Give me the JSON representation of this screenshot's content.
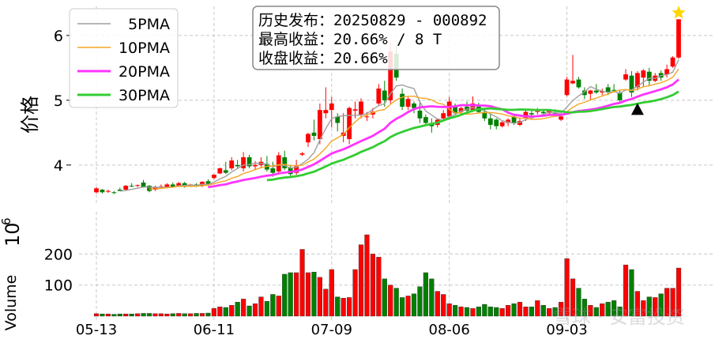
{
  "chart_data": {
    "type": "candlestick",
    "price_panel": {
      "ylabel": "价格",
      "yticks": [
        4,
        5,
        6
      ],
      "ylim": [
        3.4,
        6.45
      ],
      "grid": true,
      "candles": [
        [
          3.58,
          3.66,
          3.56,
          3.64
        ],
        [
          3.62,
          3.63,
          3.56,
          3.58
        ],
        [
          3.6,
          3.62,
          3.57,
          3.6
        ],
        [
          3.58,
          3.6,
          3.55,
          3.57
        ],
        [
          3.62,
          3.65,
          3.6,
          3.6
        ],
        [
          3.62,
          3.69,
          3.6,
          3.68
        ],
        [
          3.68,
          3.72,
          3.66,
          3.67
        ],
        [
          3.68,
          3.7,
          3.66,
          3.69
        ],
        [
          3.73,
          3.77,
          3.65,
          3.66
        ],
        [
          3.68,
          3.69,
          3.58,
          3.6
        ],
        [
          3.62,
          3.68,
          3.6,
          3.66
        ],
        [
          3.66,
          3.7,
          3.63,
          3.67
        ],
        [
          3.66,
          3.72,
          3.64,
          3.7
        ],
        [
          3.7,
          3.73,
          3.65,
          3.66
        ],
        [
          3.68,
          3.74,
          3.66,
          3.72
        ],
        [
          3.72,
          3.74,
          3.65,
          3.67
        ],
        [
          3.68,
          3.71,
          3.66,
          3.7
        ],
        [
          3.7,
          3.72,
          3.66,
          3.68
        ],
        [
          3.68,
          3.75,
          3.66,
          3.74
        ],
        [
          3.75,
          3.78,
          3.68,
          3.71
        ],
        [
          3.8,
          3.86,
          3.78,
          3.85
        ],
        [
          3.87,
          3.96,
          3.86,
          3.95
        ],
        [
          3.92,
          4.05,
          3.86,
          3.88
        ],
        [
          3.95,
          4.12,
          3.92,
          4.07
        ],
        [
          4.0,
          4.08,
          3.94,
          3.98
        ],
        [
          3.95,
          4.2,
          3.9,
          4.12
        ],
        [
          4.12,
          4.16,
          3.95,
          3.98
        ],
        [
          3.98,
          4.06,
          3.92,
          4.0
        ],
        [
          4.0,
          4.12,
          3.96,
          4.05
        ],
        [
          4.02,
          4.14,
          3.9,
          3.93
        ],
        [
          3.95,
          4.05,
          3.82,
          3.88
        ],
        [
          3.9,
          4.2,
          3.85,
          4.15
        ],
        [
          4.12,
          4.22,
          3.92,
          3.95
        ],
        [
          3.96,
          3.99,
          3.8,
          3.86
        ],
        [
          3.88,
          4.08,
          3.85,
          3.98
        ],
        [
          4.16,
          4.2,
          4.14,
          4.18
        ],
        [
          4.35,
          4.5,
          4.28,
          4.48
        ],
        [
          4.5,
          4.7,
          4.38,
          4.45
        ],
        [
          4.4,
          4.95,
          4.32,
          4.85
        ],
        [
          4.8,
          5.2,
          4.72,
          4.85
        ],
        [
          4.85,
          5.05,
          4.58,
          4.95
        ],
        [
          4.75,
          4.8,
          4.52,
          4.65
        ],
        [
          4.45,
          4.8,
          4.35,
          4.5
        ],
        [
          4.4,
          4.9,
          4.32,
          4.88
        ],
        [
          4.84,
          4.98,
          4.72,
          4.86
        ],
        [
          4.78,
          5.03,
          4.72,
          4.98
        ],
        [
          4.75,
          4.82,
          4.68,
          4.75
        ],
        [
          4.78,
          4.88,
          4.72,
          4.82
        ],
        [
          4.95,
          5.25,
          4.92,
          5.18
        ],
        [
          5.15,
          5.3,
          4.9,
          5.0
        ],
        [
          5.0,
          5.9,
          4.95,
          5.75
        ],
        [
          5.72,
          5.85,
          5.3,
          5.35
        ],
        [
          5.1,
          5.18,
          4.85,
          4.9
        ],
        [
          4.9,
          5.05,
          4.85,
          5.02
        ],
        [
          4.95,
          4.98,
          4.8,
          4.88
        ],
        [
          4.84,
          5.0,
          4.65,
          4.72
        ],
        [
          4.74,
          4.78,
          4.62,
          4.65
        ],
        [
          4.65,
          4.72,
          4.5,
          4.6
        ],
        [
          4.62,
          4.72,
          4.58,
          4.7
        ],
        [
          4.72,
          4.85,
          4.68,
          4.8
        ],
        [
          4.75,
          5.05,
          4.7,
          4.98
        ],
        [
          4.9,
          4.95,
          4.78,
          4.8
        ],
        [
          4.82,
          4.9,
          4.78,
          4.88
        ],
        [
          4.9,
          4.98,
          4.8,
          4.84
        ],
        [
          4.85,
          5.06,
          4.82,
          4.95
        ],
        [
          4.9,
          4.96,
          4.8,
          4.82
        ],
        [
          4.82,
          4.86,
          4.68,
          4.72
        ],
        [
          4.72,
          4.8,
          4.55,
          4.62
        ],
        [
          4.7,
          4.72,
          4.55,
          4.6
        ],
        [
          4.6,
          4.68,
          4.58,
          4.66
        ],
        [
          4.65,
          4.72,
          4.6,
          4.7
        ],
        [
          4.75,
          4.78,
          4.62,
          4.65
        ],
        [
          4.62,
          4.72,
          4.6,
          4.68
        ],
        [
          4.72,
          4.85,
          4.68,
          4.82
        ],
        [
          4.8,
          4.85,
          4.75,
          4.78
        ],
        [
          4.82,
          4.88,
          4.78,
          4.84
        ],
        [
          4.82,
          4.86,
          4.78,
          4.8
        ],
        [
          4.8,
          4.86,
          4.78,
          4.84
        ],
        [
          4.8,
          4.86,
          4.75,
          4.77
        ],
        [
          4.7,
          4.78,
          4.68,
          4.75
        ],
        [
          5.08,
          5.36,
          5.06,
          5.32
        ],
        [
          5.26,
          5.7,
          5.25,
          5.3
        ],
        [
          5.32,
          5.36,
          5.18,
          5.2
        ],
        [
          5.15,
          5.2,
          5.02,
          5.08
        ],
        [
          5.1,
          5.16,
          5.0,
          5.15
        ],
        [
          5.15,
          5.25,
          5.1,
          5.12
        ],
        [
          5.12,
          5.18,
          5.08,
          5.14
        ],
        [
          5.2,
          5.25,
          5.08,
          5.12
        ],
        [
          5.16,
          5.25,
          5.12,
          5.15
        ],
        [
          5.12,
          5.15,
          4.98,
          5.0
        ],
        [
          5.32,
          5.48,
          5.3,
          5.4
        ],
        [
          5.38,
          5.45,
          5.05,
          5.12
        ],
        [
          5.2,
          5.45,
          5.15,
          5.42
        ],
        [
          5.35,
          5.48,
          5.2,
          5.46
        ],
        [
          5.44,
          5.5,
          5.22,
          5.3
        ],
        [
          5.3,
          5.42,
          5.28,
          5.38
        ],
        [
          5.42,
          5.46,
          5.3,
          5.35
        ],
        [
          5.4,
          5.55,
          5.35,
          5.48
        ],
        [
          5.52,
          5.68,
          5.5,
          5.66
        ],
        [
          5.66,
          6.25,
          5.64,
          6.25
        ]
      ],
      "moving_averages": [
        {
          "name": "5PMA",
          "color": "#a0a0a0",
          "period": 5
        },
        {
          "name": "10PMA",
          "color": "#f5a623",
          "period": 10
        },
        {
          "name": "20PMA",
          "color": "#ff33ff",
          "period": 20
        },
        {
          "name": "30PMA",
          "color": "#33cc33",
          "period": 30
        }
      ],
      "legend_position": "top-left",
      "annotation": {
        "line1": "历史发布：20250829 - 000892",
        "line2": "最高收益：20.66% / 8 T",
        "line3": "收盘收益：20.66%"
      },
      "markers": [
        {
          "type": "triangle",
          "color": "#000000",
          "index": 92,
          "value": 4.86
        },
        {
          "type": "star",
          "color": "#ffd700",
          "index": 99,
          "value": 6.35
        }
      ]
    },
    "volume_panel": {
      "ylabel": "Volume",
      "exponent_label": "10",
      "exponent_power": "6",
      "yticks": [
        100,
        200
      ],
      "ylim": [
        0,
        285
      ],
      "values": [
        8,
        7,
        7,
        6,
        7,
        7,
        7,
        8,
        9,
        9,
        8,
        8,
        7,
        8,
        9,
        8,
        8,
        9,
        9,
        10,
        25,
        30,
        28,
        35,
        45,
        55,
        33,
        40,
        62,
        48,
        70,
        65,
        135,
        140,
        140,
        215,
        140,
        142,
        125,
        87,
        150,
        62,
        58,
        60,
        150,
        230,
        262,
        200,
        190,
        120,
        100,
        90,
        60,
        65,
        72,
        95,
        140,
        120,
        80,
        70,
        40,
        35,
        30,
        28,
        25,
        30,
        38,
        30,
        28,
        25,
        35,
        40,
        45,
        30,
        30,
        50,
        35,
        25,
        28,
        45,
        185,
        120,
        90,
        55,
        35,
        28,
        40,
        45,
        50,
        30,
        165,
        150,
        80,
        50,
        62,
        60,
        72,
        90,
        90,
        155
      ]
    },
    "x_tick_labels": [
      "05-13",
      "06-11",
      "07-09",
      "08-06",
      "09-03"
    ],
    "x_tick_indices": [
      0,
      20,
      40,
      60,
      80
    ],
    "colors": {
      "up": "#ff0000",
      "down": "#008000",
      "grid": "#c8c8c8"
    },
    "grid": true
  },
  "watermark": "雪球 · 安富投资"
}
